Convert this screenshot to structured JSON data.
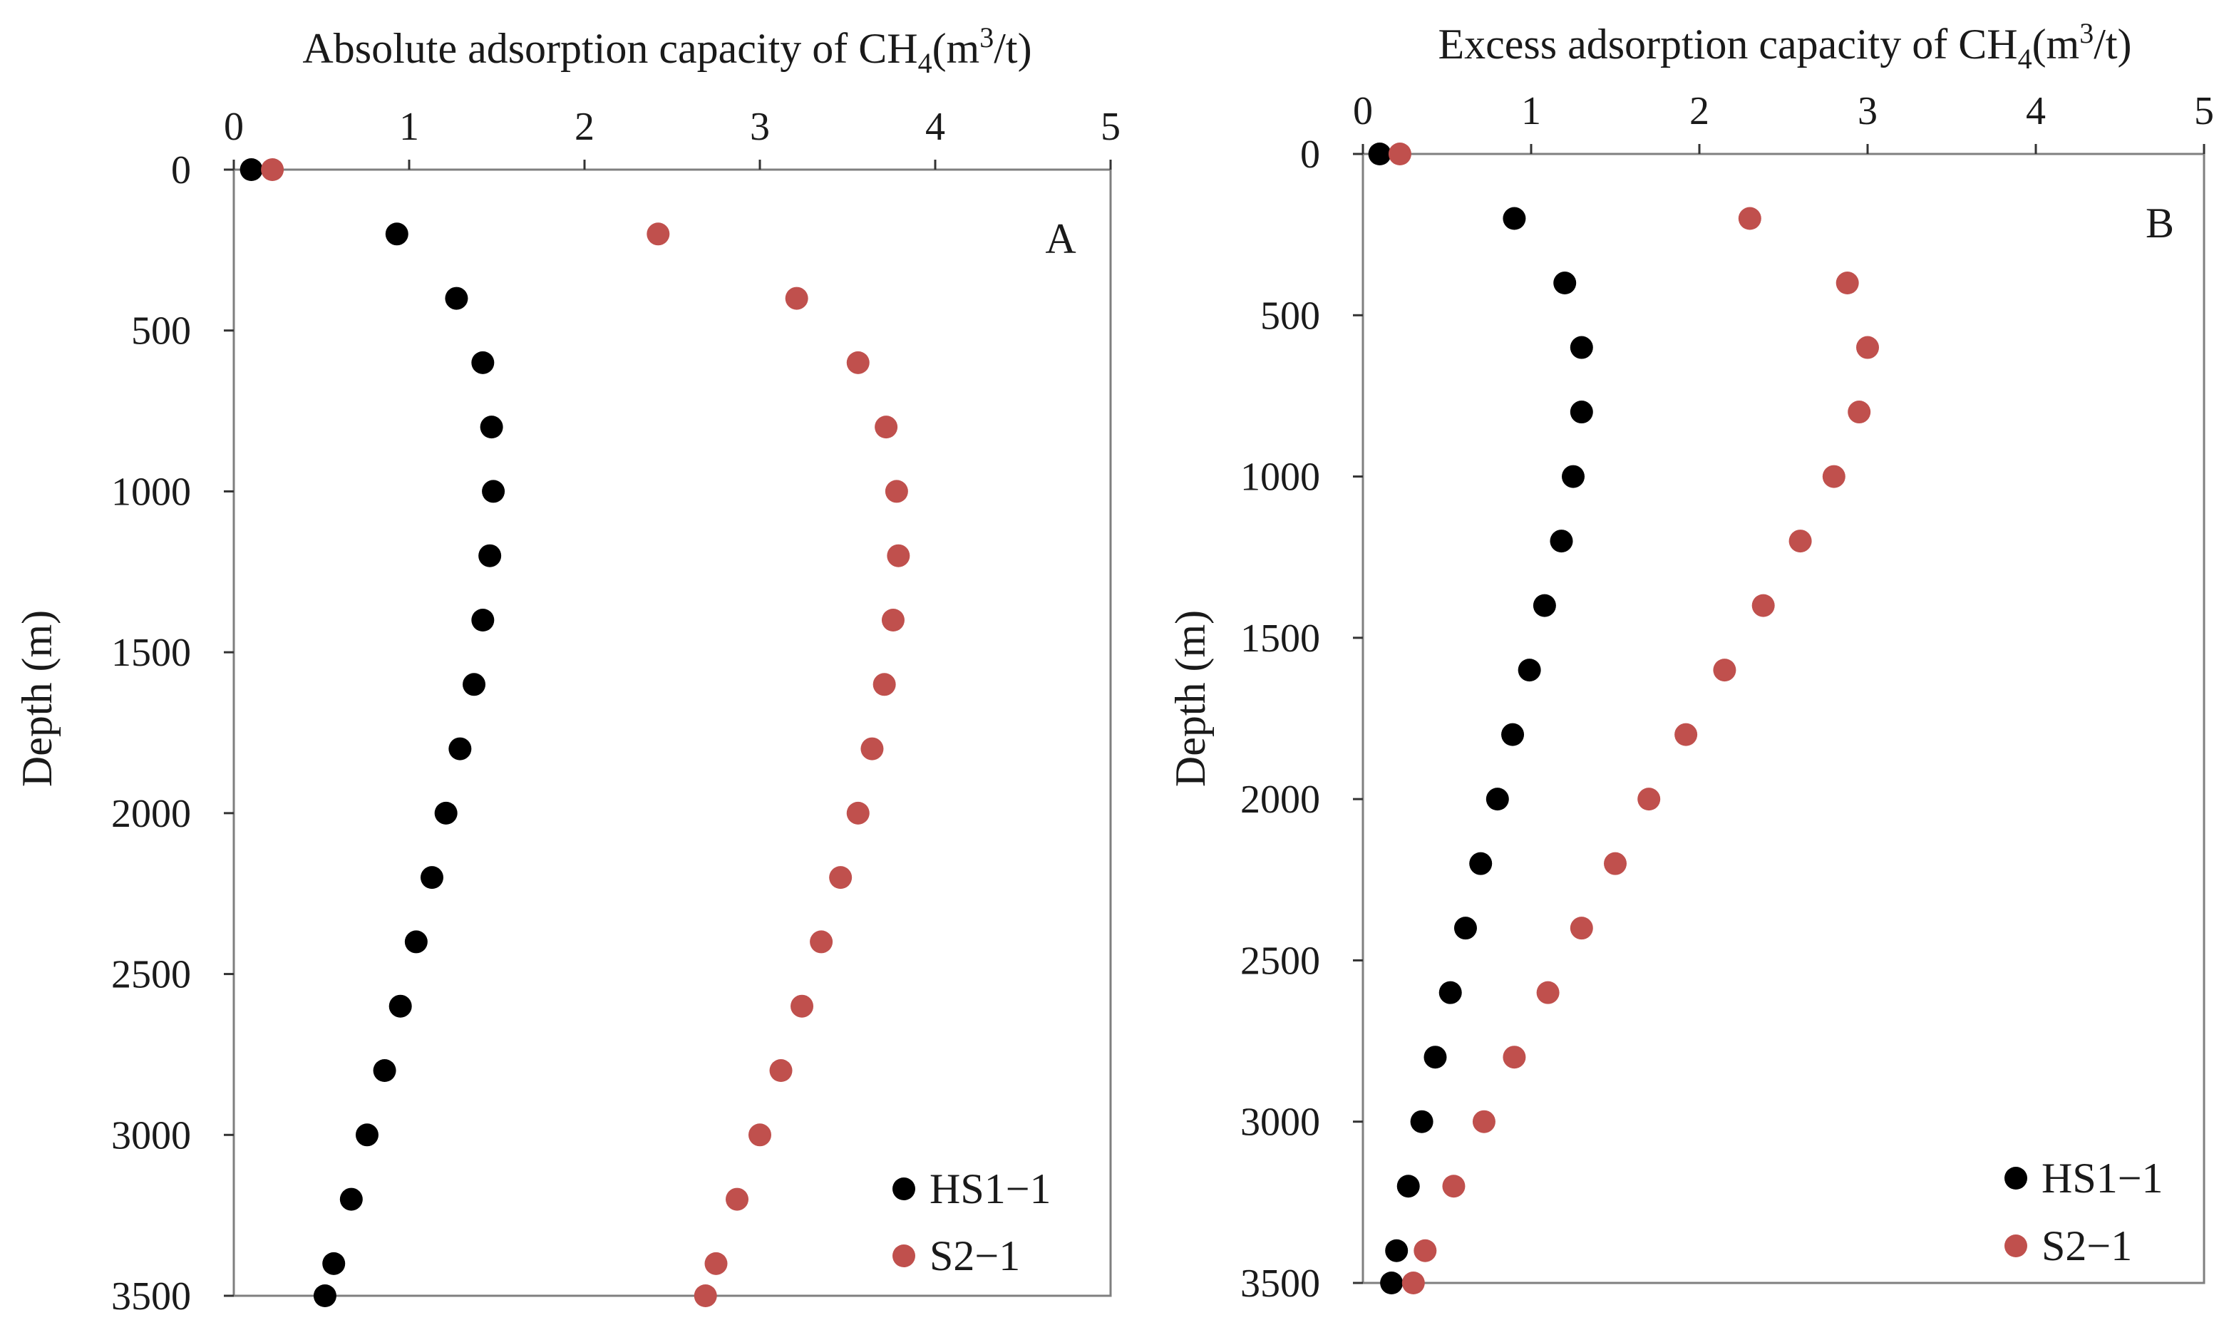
{
  "chart_data": [
    {
      "type": "scatter",
      "panel_label": "A",
      "title_text": "Absolute adsorption capacity of CH",
      "title_sub": "4",
      "title_units_open": "(m",
      "title_units_sup": "3",
      "title_units_close": "/t)",
      "xlabel": "Absolute adsorption capacity of CH4 (m3/t)",
      "ylabel": "Depth (m)",
      "xlim": [
        0,
        5
      ],
      "ylim": [
        0,
        3500
      ],
      "x_ticks": [
        "0",
        "1",
        "2",
        "3",
        "4",
        "5"
      ],
      "y_ticks": [
        "0",
        "500",
        "1000",
        "1500",
        "2000",
        "2500",
        "3000",
        "3500"
      ],
      "x_axis_position": "top",
      "y_inverted": true,
      "legend_position": "bottom-right",
      "series": [
        {
          "name": "HS1−1",
          "color": "#000000",
          "depth": [
            0,
            200,
            400,
            600,
            800,
            1000,
            1200,
            1400,
            1600,
            1800,
            2000,
            2200,
            2400,
            2600,
            2800,
            3000,
            3200,
            3400,
            3500
          ],
          "values": [
            0.1,
            0.93,
            1.27,
            1.42,
            1.47,
            1.48,
            1.46,
            1.42,
            1.37,
            1.29,
            1.21,
            1.13,
            1.04,
            0.95,
            0.86,
            0.76,
            0.67,
            0.57,
            0.52
          ]
        },
        {
          "name": "S2−1",
          "color": "#c0504d",
          "depth": [
            0,
            200,
            400,
            600,
            800,
            1000,
            1200,
            1400,
            1600,
            1800,
            2000,
            2200,
            2400,
            2600,
            2800,
            3000,
            3200,
            3400,
            3500
          ],
          "values": [
            0.22,
            2.42,
            3.21,
            3.56,
            3.72,
            3.78,
            3.79,
            3.76,
            3.71,
            3.64,
            3.56,
            3.46,
            3.35,
            3.24,
            3.12,
            3.0,
            2.87,
            2.75,
            2.69
          ]
        }
      ]
    },
    {
      "type": "scatter",
      "panel_label": "B",
      "title_text": "Excess adsorption capacity of CH",
      "title_sub": "4",
      "title_units_open": "(m",
      "title_units_sup": "3",
      "title_units_close": "/t)",
      "xlabel": "Excess adsorption capacity of CH4 (m3/t)",
      "ylabel": "Depth (m)",
      "xlim": [
        0,
        5
      ],
      "ylim": [
        0,
        3500
      ],
      "x_ticks": [
        "0",
        "1",
        "2",
        "3",
        "4",
        "5"
      ],
      "y_ticks": [
        "0",
        "500",
        "1000",
        "1500",
        "2000",
        "2500",
        "3000",
        "3500"
      ],
      "x_axis_position": "top",
      "y_inverted": true,
      "legend_position": "bottom-right",
      "series": [
        {
          "name": "HS1−1",
          "color": "#000000",
          "depth": [
            0,
            200,
            400,
            600,
            800,
            1000,
            1200,
            1400,
            1600,
            1800,
            2000,
            2200,
            2400,
            2600,
            2800,
            3000,
            3200,
            3400,
            3500
          ],
          "values": [
            0.1,
            0.9,
            1.2,
            1.3,
            1.3,
            1.25,
            1.18,
            1.08,
            0.99,
            0.89,
            0.8,
            0.7,
            0.61,
            0.52,
            0.43,
            0.35,
            0.27,
            0.2,
            0.17
          ]
        },
        {
          "name": "S2−1",
          "color": "#c0504d",
          "depth": [
            0,
            200,
            400,
            600,
            800,
            1000,
            1200,
            1400,
            1600,
            1800,
            2000,
            2200,
            2400,
            2600,
            2800,
            3000,
            3200,
            3400,
            3500
          ],
          "values": [
            0.22,
            2.3,
            2.88,
            3.0,
            2.95,
            2.8,
            2.6,
            2.38,
            2.15,
            1.92,
            1.7,
            1.5,
            1.3,
            1.1,
            0.9,
            0.72,
            0.54,
            0.37,
            0.3
          ]
        }
      ]
    }
  ]
}
